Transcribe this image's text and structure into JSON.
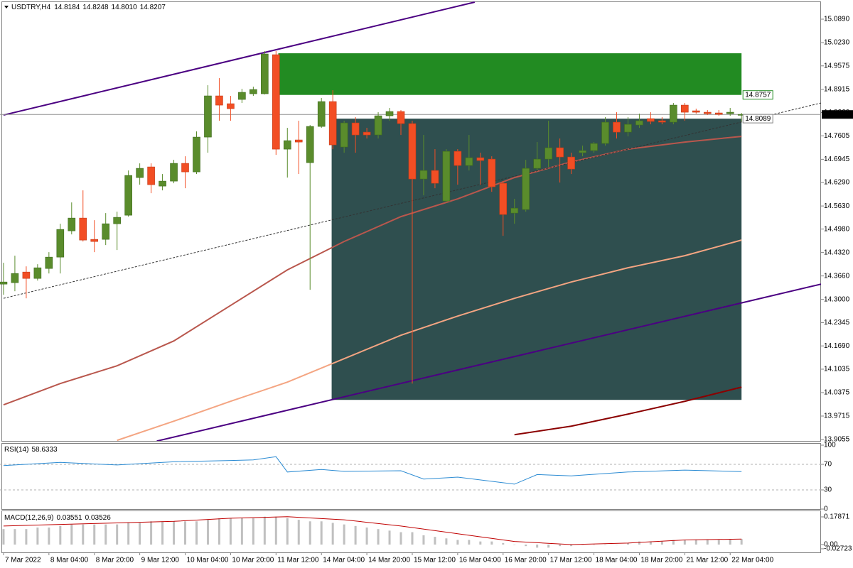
{
  "chart_data": [
    {
      "type": "candlestick",
      "title": "USDTRY,H4",
      "ohlc": [
        14.8184,
        14.8248,
        {
          "value": 14.801,
          "label": "14.8010"
        },
        14.8207
      ],
      "up_color": "#5a8c2c",
      "down_color": "#f24e24",
      "xlim": [
        -0.31,
        72.0
      ],
      "ylim": [
        13.9015,
        15.139
      ],
      "xticks": [
        {
          "value": 0,
          "label": "7 Mar 2022"
        },
        {
          "value": 4,
          "label": "8 Mar 04:00"
        },
        {
          "value": 8,
          "label": "8 Mar 20:00"
        },
        {
          "value": 12,
          "label": "9 Mar 12:00"
        },
        {
          "value": 16,
          "label": "10 Mar 04:00"
        },
        {
          "value": 20,
          "label": "10 Mar 20:00"
        },
        {
          "value": 24,
          "label": "11 Mar 12:00"
        },
        {
          "value": 28,
          "label": "14 Mar 04:00"
        },
        {
          "value": 32,
          "label": "14 Mar 20:00"
        },
        {
          "value": 36,
          "label": "15 Mar 12:00"
        },
        {
          "value": 40,
          "label": "16 Mar 04:00"
        },
        {
          "value": 44,
          "label": "16 Mar 20:00"
        },
        {
          "value": 48,
          "label": "17 Mar 12:00"
        },
        {
          "value": 52,
          "label": "18 Mar 04:00"
        },
        {
          "value": 56,
          "label": "18 Mar 20:00"
        },
        {
          "value": 60,
          "label": "21 Mar 12:00"
        },
        {
          "value": 64,
          "label": "22 Mar 04:00"
        }
      ],
      "yticks": [
        {
          "value": 15.089,
          "label": "15.0890"
        },
        {
          "value": 15.023,
          "label": "15.0230"
        },
        14.9575,
        14.8915,
        {
          "value": 14.826,
          "label": "14.8260"
        },
        14.7605,
        14.6945,
        {
          "value": 14.629,
          "label": "14.6290"
        },
        {
          "value": 14.563,
          "label": "14.5630"
        },
        {
          "value": 14.498,
          "label": "14.4980"
        },
        {
          "value": 14.432,
          "label": "14.4320"
        },
        {
          "value": 14.366,
          "label": "14.3660"
        },
        {
          "value": 14.3,
          "label": "14.3000"
        },
        14.2345,
        {
          "value": 14.169,
          "label": "14.1690"
        },
        14.1035,
        14.0375,
        13.9715,
        13.9055
      ],
      "open": [
        14.343,
        14.347,
        14.377,
        14.359,
        14.387,
        14.419,
        14.493,
        14.529,
        14.469,
        14.469,
        14.513,
        14.537,
        14.643,
        14.673,
        14.619,
        14.633,
        14.683,
        14.659,
        14.757,
        14.873,
        14.851,
        14.863,
        14.879,
        14.879,
        14.989,
        14.723,
        14.749,
        14.685,
        14.787,
        14.857,
        14.729,
        14.797,
        14.771,
        14.763,
        14.817,
        14.829,
        14.795,
        14.639,
        14.663,
        14.577,
        14.717,
        14.677,
        14.699,
        14.695,
        14.627,
        14.543,
        14.553,
        14.669,
        14.695,
        14.727,
        14.701,
        14.713,
        14.719,
        14.739,
        14.799,
        14.771,
        14.791,
        14.809,
        14.803,
        14.799,
        14.847,
        14.831,
        14.827,
        14.825,
        14.823,
        14.8184
      ],
      "high": [
        14.403,
        14.423,
        14.393,
        14.399,
        14.433,
        14.513,
        14.573,
        14.607,
        14.523,
        14.543,
        14.547,
        14.663,
        14.683,
        14.683,
        14.653,
        14.693,
        14.703,
        14.773,
        14.903,
        14.923,
        14.873,
        14.893,
        14.899,
        14.999,
        14.999,
        14.783,
        14.803,
        14.791,
        14.867,
        14.889,
        14.803,
        14.813,
        14.783,
        14.827,
        14.839,
        14.833,
        14.803,
        14.763,
        14.723,
        14.723,
        14.723,
        14.763,
        14.713,
        14.703,
        14.633,
        14.583,
        14.693,
        14.743,
        14.803,
        14.753,
        14.713,
        14.733,
        14.743,
        14.813,
        14.827,
        14.813,
        14.823,
        14.827,
        14.813,
        14.853,
        14.853,
        14.837,
        14.833,
        14.833,
        14.839,
        14.8248
      ],
      "low": [
        14.313,
        14.323,
        14.303,
        14.353,
        14.373,
        14.373,
        14.483,
        14.463,
        14.433,
        14.453,
        14.439,
        14.533,
        14.623,
        14.599,
        14.607,
        14.627,
        14.613,
        14.653,
        14.713,
        14.803,
        14.803,
        14.853,
        14.873,
        14.877,
        14.707,
        14.643,
        14.653,
        14.327,
        14.783,
        14.723,
        14.713,
        14.713,
        14.753,
        14.753,
        14.803,
        14.763,
        14.063,
        14.593,
        14.613,
        14.573,
        14.623,
        14.663,
        14.623,
        14.603,
        14.479,
        14.513,
        14.547,
        14.663,
        14.673,
        14.629,
        14.653,
        14.703,
        14.713,
        14.733,
        14.753,
        14.759,
        14.783,
        14.793,
        14.793,
        14.793,
        14.803,
        14.823,
        14.819,
        14.817,
        14.817,
        14.801
      ],
      "close": [
        14.349,
        14.373,
        14.359,
        14.389,
        14.419,
        14.497,
        14.529,
        14.467,
        14.463,
        14.513,
        14.531,
        14.649,
        14.669,
        14.623,
        14.633,
        14.683,
        14.659,
        14.757,
        14.873,
        14.847,
        14.837,
        14.883,
        14.891,
        14.991,
        14.723,
        14.747,
        14.743,
        14.787,
        14.857,
        14.735,
        14.797,
        14.763,
        14.763,
        14.817,
        14.829,
        14.795,
        14.639,
        14.663,
        14.627,
        14.717,
        14.677,
        14.699,
        14.691,
        14.617,
        14.539,
        14.557,
        14.669,
        14.695,
        14.727,
        14.701,
        14.667,
        14.719,
        14.739,
        14.799,
        14.771,
        14.793,
        14.803,
        14.801,
        14.799,
        14.847,
        14.827,
        14.827,
        14.823,
        14.821,
        14.827,
        14.8207
      ],
      "moving_averages": [
        {
          "color": "#b9574d",
          "x": [
            0,
            5,
            10,
            15,
            20,
            25,
            30,
            35,
            40,
            45,
            50,
            55,
            60,
            65
          ],
          "values": [
            14.003,
            14.063,
            14.113,
            14.183,
            14.283,
            14.383,
            14.463,
            14.533,
            14.583,
            14.643,
            14.687,
            14.723,
            14.743,
            14.759
          ]
        },
        {
          "color": "#f4a582",
          "x": [
            0,
            5,
            10,
            15,
            20,
            25,
            30,
            35,
            40,
            45,
            50,
            55,
            60,
            65
          ],
          "values": [
            null,
            null,
            13.903,
            13.957,
            14.013,
            14.067,
            14.133,
            14.199,
            14.253,
            14.303,
            14.349,
            14.389,
            14.423,
            14.467
          ]
        },
        {
          "color": "#8b0000",
          "x": [
            45,
            50,
            55,
            60,
            65
          ],
          "values": [
            13.919,
            13.943,
            13.977,
            14.013,
            14.053
          ]
        }
      ],
      "trendlines": [
        {
          "color": "#4b0082",
          "x": [
            0,
            41.5
          ],
          "values": [
            14.819,
            15.137
          ]
        },
        {
          "color": "#4b0082",
          "x": [
            13.5,
            72
          ],
          "values": [
            13.901,
            14.343
          ]
        },
        {
          "color": "#333333",
          "x": [
            0,
            72
          ],
          "values": [
            14.303,
            14.853
          ],
          "dashed": true
        }
      ],
      "rectangles": [
        {
          "color": "#228b22",
          "x": [
            24.2,
            65
          ],
          "values": [
            14.8757,
            14.993
          ]
        },
        {
          "color": "#2f4f4f",
          "x": [
            28.9,
            65
          ],
          "values": [
            14.017,
            14.8089
          ]
        }
      ],
      "price_line": 14.8207
    },
    {
      "type": "line",
      "title": "RSI(14)",
      "color": "#2b8bd3",
      "x": [
        0,
        5,
        10,
        15,
        20,
        22,
        24,
        25,
        28,
        30,
        35,
        37,
        40,
        45,
        47,
        50,
        55,
        60,
        65
      ],
      "values": [
        68,
        73,
        69,
        74,
        76,
        77,
        82,
        58,
        62,
        59,
        60,
        47,
        50,
        39,
        54,
        52,
        58,
        61,
        58.6333
      ],
      "ylim": [
        0,
        100
      ],
      "yticks": [
        100,
        70,
        30,
        0
      ]
    },
    {
      "type": "macd",
      "title": "MACD(12,26,9)",
      "color": "#c0c0c0",
      "signal_color": "#c00000",
      "values": [
        0.1,
        0.1,
        0.1,
        0.11,
        0.11,
        0.12,
        0.13,
        0.13,
        0.13,
        0.13,
        0.13,
        0.14,
        0.14,
        0.15,
        0.15,
        0.15,
        0.15,
        0.15,
        0.16,
        0.17,
        0.17,
        0.17,
        0.17,
        0.18,
        0.18,
        0.17,
        0.16,
        0.15,
        0.15,
        0.14,
        0.13,
        0.12,
        0.11,
        0.1,
        0.09,
        0.08,
        0.08,
        0.06,
        0.05,
        0.04,
        0.03,
        0.03,
        0.02,
        0.02,
        0.01,
        0.0,
        -0.01,
        -0.02,
        -0.02,
        -0.01,
        -0.01,
        0.0,
        0.0,
        0.0,
        0.0,
        0.01,
        0.02,
        0.02,
        0.02,
        0.03,
        0.03,
        0.03,
        0.03,
        0.03,
        0.035,
        0.03551
      ],
      "signal_x": [
        0,
        5,
        10,
        15,
        20,
        25,
        30,
        35,
        40,
        45,
        50,
        55,
        60,
        65
      ],
      "signal": [
        0.12,
        0.13,
        0.14,
        0.15,
        0.17,
        0.18,
        0.16,
        0.12,
        0.07,
        0.02,
        0.0,
        0.01,
        0.03,
        0.03526
      ],
      "ylim": [
        -0.0504,
        0.2154
      ],
      "yticks": [
        0.17871,
        {
          "value": 0,
          "label": "0.00"
        },
        -0.02723
      ]
    }
  ]
}
